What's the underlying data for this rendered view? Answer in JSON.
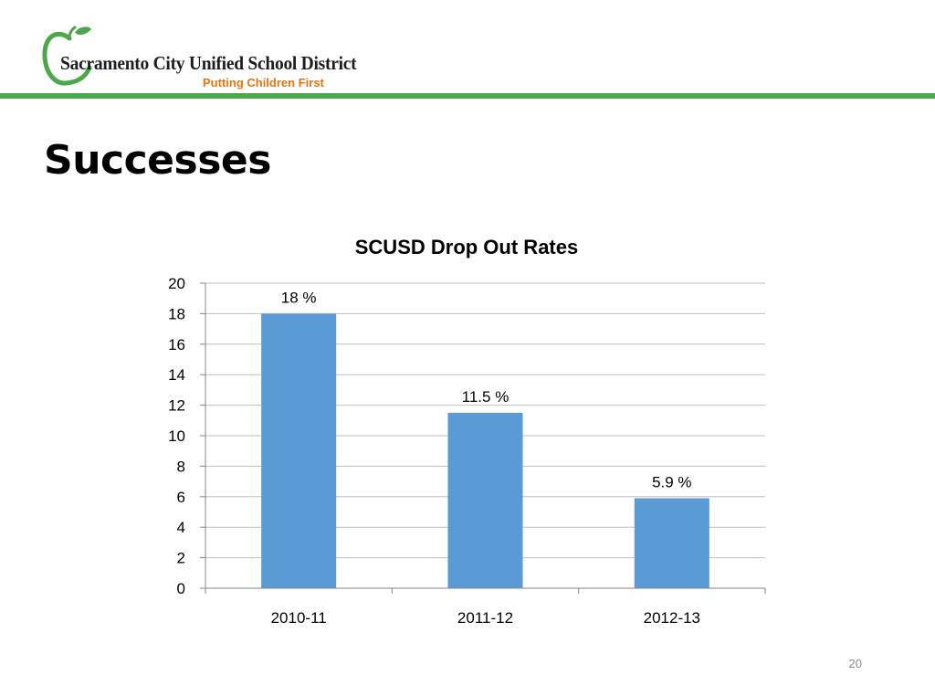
{
  "header": {
    "org_name": "Sacramento City Unified School District",
    "tagline": "Putting Children First",
    "logo_icon": "apple-logo-icon",
    "accent_color": "#4ea64a",
    "tagline_color": "#e8730c"
  },
  "slide": {
    "title": "Successes",
    "page_number": "20"
  },
  "chart_data": {
    "type": "bar",
    "title": "SCUSD Drop Out Rates",
    "categories": [
      "2010-11",
      "2011-12",
      "2012-13"
    ],
    "values": [
      18,
      11.5,
      5.9
    ],
    "data_labels": [
      "18 %",
      "11.5 %",
      "5.9 %"
    ],
    "ylim": [
      0,
      20
    ],
    "yticks": [
      0,
      2,
      4,
      6,
      8,
      10,
      12,
      14,
      16,
      18,
      20
    ],
    "xlabel": "",
    "ylabel": "",
    "grid": true,
    "legend": false,
    "bar_color": "#5b9bd5"
  }
}
